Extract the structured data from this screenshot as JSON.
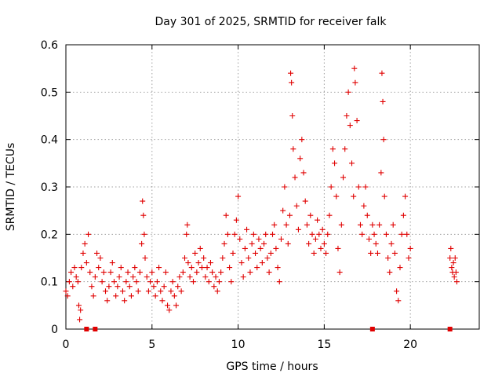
{
  "chart_data": {
    "type": "scatter",
    "title": "Day 301 of 2025, SRMTID for receiver falk",
    "xlabel": "GPS time / hours",
    "ylabel": "SRMTID / TECUs",
    "xlim": [
      0,
      24
    ],
    "ylim": [
      0,
      0.6
    ],
    "x_ticks": [
      0,
      5,
      10,
      15,
      20
    ],
    "x_tick_labels": [
      "0",
      "5",
      "10",
      "15",
      "20"
    ],
    "y_ticks": [
      0,
      0.1,
      0.2,
      0.3,
      0.4,
      0.5,
      0.6
    ],
    "y_tick_labels": [
      "0",
      "0.1",
      "0.2",
      "0.3",
      "0.4",
      "0.5",
      "0.6"
    ],
    "grid": true,
    "marker": "plus",
    "color": "#e00000",
    "series": [
      {
        "name": "SRMTID",
        "points": [
          [
            0.0,
            0.08
          ],
          [
            0.1,
            0.07
          ],
          [
            0.2,
            0.1
          ],
          [
            0.3,
            0.12
          ],
          [
            0.4,
            0.09
          ],
          [
            0.5,
            0.13
          ],
          [
            0.6,
            0.11
          ],
          [
            0.7,
            0.1
          ],
          [
            0.75,
            0.05
          ],
          [
            0.8,
            0.02
          ],
          [
            0.85,
            0.04
          ],
          [
            0.9,
            0.13
          ],
          [
            1.0,
            0.16
          ],
          [
            1.1,
            0.18
          ],
          [
            1.2,
            0.14
          ],
          [
            1.3,
            0.2
          ],
          [
            1.4,
            0.12
          ],
          [
            1.5,
            0.09
          ],
          [
            1.6,
            0.07
          ],
          [
            1.7,
            0.11
          ],
          [
            1.8,
            0.16
          ],
          [
            1.9,
            0.13
          ],
          [
            2.0,
            0.15
          ],
          [
            2.1,
            0.1
          ],
          [
            2.2,
            0.12
          ],
          [
            2.3,
            0.08
          ],
          [
            2.4,
            0.06
          ],
          [
            2.5,
            0.09
          ],
          [
            2.6,
            0.12
          ],
          [
            2.7,
            0.14
          ],
          [
            2.8,
            0.1
          ],
          [
            2.9,
            0.07
          ],
          [
            3.0,
            0.09
          ],
          [
            3.1,
            0.11
          ],
          [
            3.2,
            0.13
          ],
          [
            3.3,
            0.08
          ],
          [
            3.4,
            0.06
          ],
          [
            3.5,
            0.1
          ],
          [
            3.6,
            0.12
          ],
          [
            3.7,
            0.09
          ],
          [
            3.8,
            0.07
          ],
          [
            3.9,
            0.11
          ],
          [
            4.0,
            0.13
          ],
          [
            4.1,
            0.1
          ],
          [
            4.2,
            0.08
          ],
          [
            4.3,
            0.12
          ],
          [
            4.4,
            0.18
          ],
          [
            4.45,
            0.27
          ],
          [
            4.5,
            0.24
          ],
          [
            4.55,
            0.2
          ],
          [
            4.6,
            0.15
          ],
          [
            4.7,
            0.11
          ],
          [
            4.8,
            0.08
          ],
          [
            4.9,
            0.1
          ],
          [
            5.0,
            0.12
          ],
          [
            5.1,
            0.09
          ],
          [
            5.2,
            0.07
          ],
          [
            5.3,
            0.1
          ],
          [
            5.4,
            0.13
          ],
          [
            5.5,
            0.08
          ],
          [
            5.6,
            0.06
          ],
          [
            5.7,
            0.09
          ],
          [
            5.8,
            0.12
          ],
          [
            5.9,
            0.05
          ],
          [
            6.0,
            0.04
          ],
          [
            6.1,
            0.08
          ],
          [
            6.2,
            0.1
          ],
          [
            6.3,
            0.07
          ],
          [
            6.4,
            0.05
          ],
          [
            6.5,
            0.09
          ],
          [
            6.6,
            0.11
          ],
          [
            6.7,
            0.08
          ],
          [
            6.8,
            0.12
          ],
          [
            6.9,
            0.15
          ],
          [
            7.0,
            0.2
          ],
          [
            7.05,
            0.22
          ],
          [
            7.1,
            0.14
          ],
          [
            7.2,
            0.11
          ],
          [
            7.3,
            0.13
          ],
          [
            7.4,
            0.1
          ],
          [
            7.5,
            0.16
          ],
          [
            7.6,
            0.12
          ],
          [
            7.7,
            0.14
          ],
          [
            7.8,
            0.17
          ],
          [
            7.9,
            0.13
          ],
          [
            8.0,
            0.15
          ],
          [
            8.1,
            0.11
          ],
          [
            8.2,
            0.13
          ],
          [
            8.3,
            0.1
          ],
          [
            8.4,
            0.14
          ],
          [
            8.5,
            0.12
          ],
          [
            8.6,
            0.09
          ],
          [
            8.7,
            0.11
          ],
          [
            8.8,
            0.08
          ],
          [
            8.9,
            0.1
          ],
          [
            9.0,
            0.12
          ],
          [
            9.1,
            0.15
          ],
          [
            9.2,
            0.18
          ],
          [
            9.3,
            0.24
          ],
          [
            9.4,
            0.2
          ],
          [
            9.5,
            0.13
          ],
          [
            9.6,
            0.1
          ],
          [
            9.7,
            0.16
          ],
          [
            9.8,
            0.2
          ],
          [
            9.9,
            0.23
          ],
          [
            10.0,
            0.28
          ],
          [
            10.1,
            0.19
          ],
          [
            10.2,
            0.14
          ],
          [
            10.3,
            0.11
          ],
          [
            10.4,
            0.17
          ],
          [
            10.5,
            0.21
          ],
          [
            10.6,
            0.15
          ],
          [
            10.7,
            0.12
          ],
          [
            10.8,
            0.18
          ],
          [
            10.9,
            0.2
          ],
          [
            11.0,
            0.16
          ],
          [
            11.1,
            0.13
          ],
          [
            11.2,
            0.19
          ],
          [
            11.3,
            0.17
          ],
          [
            11.4,
            0.14
          ],
          [
            11.5,
            0.18
          ],
          [
            11.6,
            0.2
          ],
          [
            11.7,
            0.15
          ],
          [
            11.8,
            0.12
          ],
          [
            11.9,
            0.16
          ],
          [
            12.0,
            0.2
          ],
          [
            12.1,
            0.22
          ],
          [
            12.2,
            0.17
          ],
          [
            12.3,
            0.13
          ],
          [
            12.4,
            0.1
          ],
          [
            12.5,
            0.19
          ],
          [
            12.6,
            0.25
          ],
          [
            12.7,
            0.3
          ],
          [
            12.8,
            0.22
          ],
          [
            12.9,
            0.18
          ],
          [
            13.0,
            0.24
          ],
          [
            13.05,
            0.54
          ],
          [
            13.1,
            0.52
          ],
          [
            13.15,
            0.45
          ],
          [
            13.2,
            0.38
          ],
          [
            13.3,
            0.32
          ],
          [
            13.4,
            0.26
          ],
          [
            13.5,
            0.21
          ],
          [
            13.6,
            0.36
          ],
          [
            13.7,
            0.4
          ],
          [
            13.8,
            0.33
          ],
          [
            13.9,
            0.27
          ],
          [
            14.0,
            0.22
          ],
          [
            14.1,
            0.18
          ],
          [
            14.2,
            0.24
          ],
          [
            14.3,
            0.2
          ],
          [
            14.4,
            0.16
          ],
          [
            14.5,
            0.19
          ],
          [
            14.6,
            0.23
          ],
          [
            14.7,
            0.2
          ],
          [
            14.8,
            0.17
          ],
          [
            14.9,
            0.21
          ],
          [
            15.0,
            0.18
          ],
          [
            15.1,
            0.16
          ],
          [
            15.2,
            0.2
          ],
          [
            15.3,
            0.24
          ],
          [
            15.4,
            0.3
          ],
          [
            15.5,
            0.38
          ],
          [
            15.6,
            0.35
          ],
          [
            15.7,
            0.28
          ],
          [
            15.8,
            0.17
          ],
          [
            15.9,
            0.12
          ],
          [
            16.0,
            0.22
          ],
          [
            16.1,
            0.32
          ],
          [
            16.2,
            0.38
          ],
          [
            16.3,
            0.45
          ],
          [
            16.4,
            0.5
          ],
          [
            16.5,
            0.43
          ],
          [
            16.6,
            0.35
          ],
          [
            16.7,
            0.28
          ],
          [
            16.75,
            0.55
          ],
          [
            16.8,
            0.52
          ],
          [
            16.9,
            0.44
          ],
          [
            17.0,
            0.3
          ],
          [
            17.1,
            0.22
          ],
          [
            17.2,
            0.2
          ],
          [
            17.3,
            0.26
          ],
          [
            17.4,
            0.3
          ],
          [
            17.5,
            0.24
          ],
          [
            17.6,
            0.19
          ],
          [
            17.7,
            0.16
          ],
          [
            17.8,
            0.22
          ],
          [
            17.9,
            0.2
          ],
          [
            18.0,
            0.18
          ],
          [
            18.1,
            0.16
          ],
          [
            18.2,
            0.22
          ],
          [
            18.3,
            0.33
          ],
          [
            18.35,
            0.54
          ],
          [
            18.4,
            0.48
          ],
          [
            18.45,
            0.4
          ],
          [
            18.5,
            0.28
          ],
          [
            18.6,
            0.2
          ],
          [
            18.7,
            0.15
          ],
          [
            18.8,
            0.12
          ],
          [
            18.9,
            0.18
          ],
          [
            19.0,
            0.22
          ],
          [
            19.1,
            0.16
          ],
          [
            19.2,
            0.08
          ],
          [
            19.3,
            0.06
          ],
          [
            19.4,
            0.13
          ],
          [
            19.5,
            0.2
          ],
          [
            19.6,
            0.24
          ],
          [
            19.7,
            0.28
          ],
          [
            19.8,
            0.2
          ],
          [
            19.9,
            0.15
          ],
          [
            20.0,
            0.17
          ],
          [
            22.3,
            0.15
          ],
          [
            22.35,
            0.17
          ],
          [
            22.4,
            0.13
          ],
          [
            22.45,
            0.12
          ],
          [
            22.5,
            0.14
          ],
          [
            22.55,
            0.11
          ],
          [
            22.6,
            0.15
          ],
          [
            22.65,
            0.12
          ],
          [
            22.7,
            0.1
          ]
        ]
      }
    ],
    "bottom_markers_x": [
      1.2,
      1.7,
      17.8,
      22.3
    ]
  }
}
